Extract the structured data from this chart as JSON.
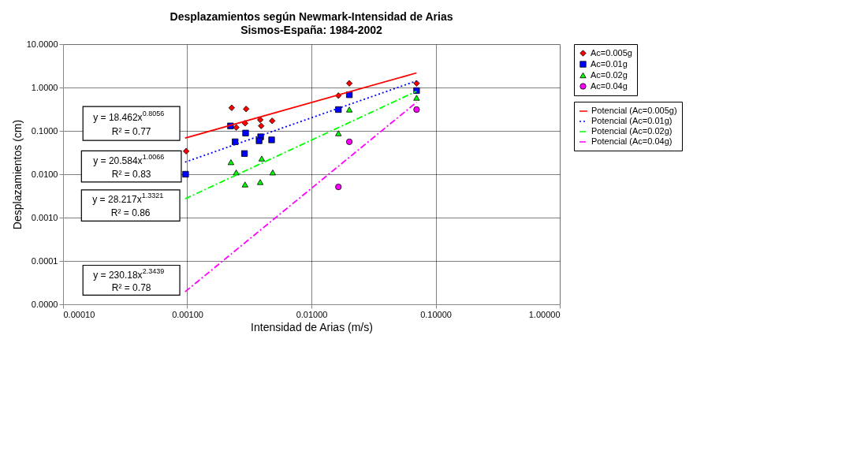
{
  "chart_data": {
    "type": "scatter",
    "title": "Desplazamientos según Newmark-Intensidad de Arias",
    "subtitle": "Sismos-España: 1984-2002",
    "xlabel": "Intensidad de Arias (m/s)",
    "ylabel": "Desplazamientos (cm)",
    "log": "xy",
    "grid": true,
    "legend": "right",
    "xlim": [
      0.0001,
      1
    ],
    "ylim": [
      1e-05,
      10
    ],
    "xticks": [
      {
        "value": 0.0001,
        "label": "0.00010"
      },
      {
        "value": 0.001,
        "label": "0.00100"
      },
      {
        "value": 0.01,
        "label": "0.01000"
      },
      {
        "value": 0.1,
        "label": "0.10000"
      },
      {
        "value": 1,
        "label": "1.00000"
      }
    ],
    "yticks": [
      {
        "value": 1e-05,
        "label": "0.0000"
      },
      {
        "value": 0.0001,
        "label": "0.0001"
      },
      {
        "value": 0.001,
        "label": "0.0010"
      },
      {
        "value": 0.01,
        "label": "0.0100"
      },
      {
        "value": 0.1,
        "label": "0.1000"
      },
      {
        "value": 1,
        "label": "1.0000"
      },
      {
        "value": 10,
        "label": "10.0000"
      }
    ],
    "series": [
      {
        "name": "Ac=0.005g",
        "marker": "diamond",
        "color": "#ff0000",
        "x": [
          0.00098,
          0.00228,
          0.00298,
          0.00248,
          0.00292,
          0.00387,
          0.00483,
          0.00394,
          0.0165,
          0.0202,
          0.0703
        ],
        "values": [
          0.034,
          0.34,
          0.32,
          0.12,
          0.15,
          0.18,
          0.17,
          0.13,
          0.65,
          1.25,
          1.25
        ]
      },
      {
        "name": "Ac=0.01g",
        "marker": "square",
        "color": "#0000ff",
        "x": [
          0.00097,
          0.00223,
          0.00295,
          0.00243,
          0.00289,
          0.0039,
          0.00379,
          0.00478,
          0.0165,
          0.0202,
          0.0703
        ],
        "values": [
          0.01,
          0.13,
          0.089,
          0.056,
          0.03,
          0.073,
          0.059,
          0.062,
          0.31,
          0.68,
          0.85
        ]
      },
      {
        "name": "Ac=0.02g",
        "marker": "triangle",
        "color": "#00ff00",
        "x": [
          0.00225,
          0.00398,
          0.00248,
          0.00488,
          0.00292,
          0.00387,
          0.0165,
          0.0202,
          0.0703
        ],
        "values": [
          0.019,
          0.023,
          0.011,
          0.011,
          0.0058,
          0.0066,
          0.088,
          0.31,
          0.58
        ]
      },
      {
        "name": "Ac=0.04g",
        "marker": "circle",
        "color": "#ff00ff",
        "x": [
          0.0165,
          0.0202,
          0.0703
        ],
        "values": [
          0.0051,
          0.056,
          0.31
        ]
      },
      {
        "name": "Potencial (Ac=0.005g)",
        "type": "line",
        "line_style": "solid",
        "color": "#ff0000",
        "x": [
          0.00096,
          0.0703
        ],
        "values": [
          0.068,
          2.17
        ]
      },
      {
        "name": "Potencial (Ac=0.01g)",
        "type": "line",
        "line_style": "dotted",
        "color": "#0000ff",
        "x": [
          0.00096,
          0.0703
        ],
        "values": [
          0.019,
          1.42
        ]
      },
      {
        "name": "Potencial (Ac=0.02g)",
        "type": "line",
        "line_style": "dashed",
        "color": "#00ff00",
        "x": [
          0.00096,
          0.0703
        ],
        "values": [
          0.0027,
          0.82
        ]
      },
      {
        "name": "Potencial (Ac=0.04g)",
        "type": "line",
        "line_style": "dashed",
        "color": "#ff00ff",
        "x": [
          0.00096,
          0.0703
        ],
        "values": [
          1.94e-05,
          0.457
        ]
      }
    ],
    "annotations": [
      "y = 18.462x$^{0.8056}$",
      "R² = 0.77",
      "y = 20.584x$^{1.0066}$",
      "R² = 0.83",
      "y = 28.217x$^{1.3321}$",
      "R² = 0.86",
      "y = 230.18x$^{2.3439}$",
      "R² = 0.78"
    ]
  }
}
